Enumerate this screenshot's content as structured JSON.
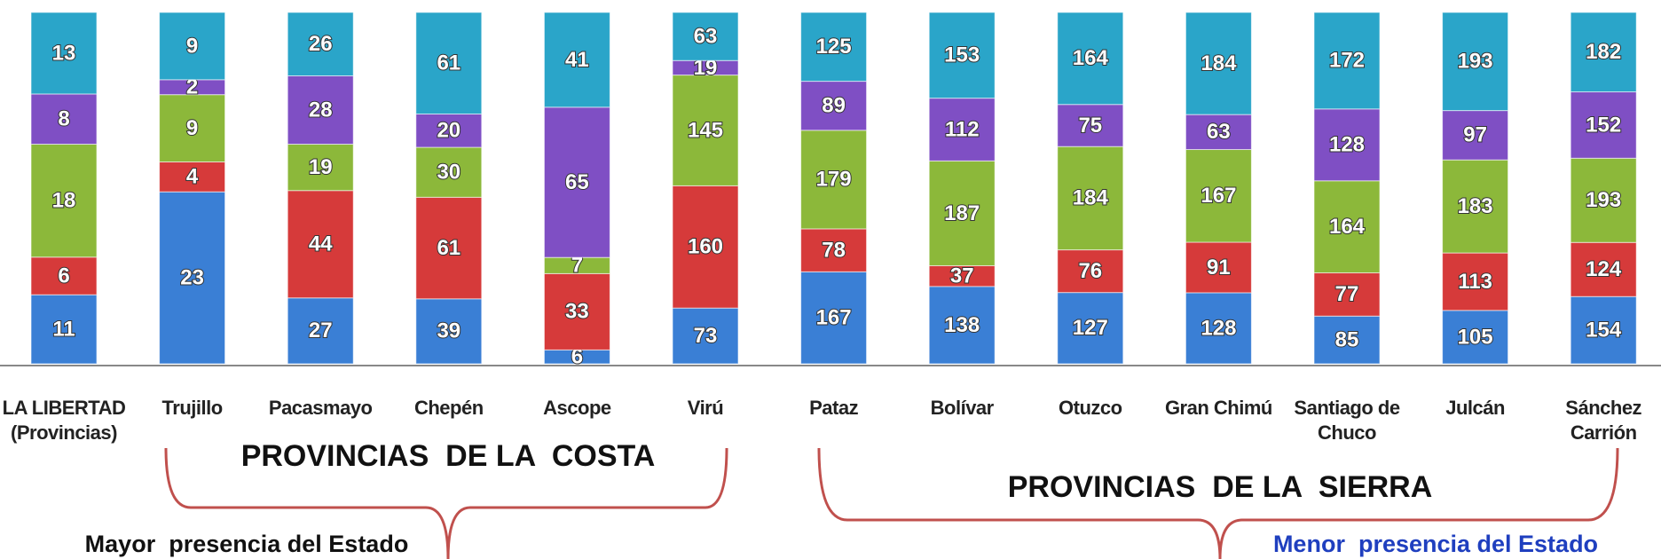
{
  "chart_data": {
    "type": "bar",
    "stacked": "percent",
    "categories": [
      "LA LIBERTAD\n(Provincias)",
      "Trujillo",
      "Pacasmayo",
      "Chepén",
      "Ascope",
      "Virú",
      "Pataz",
      "Bolívar",
      "Otuzco",
      "Gran Chimú",
      "Santiago de\nChuco",
      "Julcán",
      "Sánchez\nCarrión"
    ],
    "series": [
      {
        "color": "#3a7fd5",
        "values": [
          11,
          23,
          27,
          39,
          6,
          73,
          167,
          138,
          127,
          128,
          85,
          105,
          154
        ]
      },
      {
        "color": "#d63a3a",
        "values": [
          6,
          4,
          44,
          61,
          33,
          160,
          78,
          37,
          76,
          91,
          77,
          113,
          124
        ]
      },
      {
        "color": "#8cb83a",
        "values": [
          18,
          9,
          19,
          30,
          7,
          145,
          179,
          187,
          184,
          167,
          164,
          183,
          193
        ]
      },
      {
        "color": "#7f4fc4",
        "values": [
          8,
          2,
          28,
          20,
          65,
          19,
          89,
          112,
          75,
          63,
          128,
          97,
          152
        ]
      },
      {
        "color": "#2aa5c9",
        "values": [
          13,
          9,
          26,
          61,
          41,
          63,
          125,
          153,
          164,
          184,
          172,
          193,
          182
        ]
      }
    ],
    "annotations": [
      "PROVINCIAS  DE LA  COSTA",
      "PROVINCIAS  DE LA  SIERRA",
      "Mayor  presencia del Estado",
      "Menor  presencia del Estado"
    ]
  }
}
